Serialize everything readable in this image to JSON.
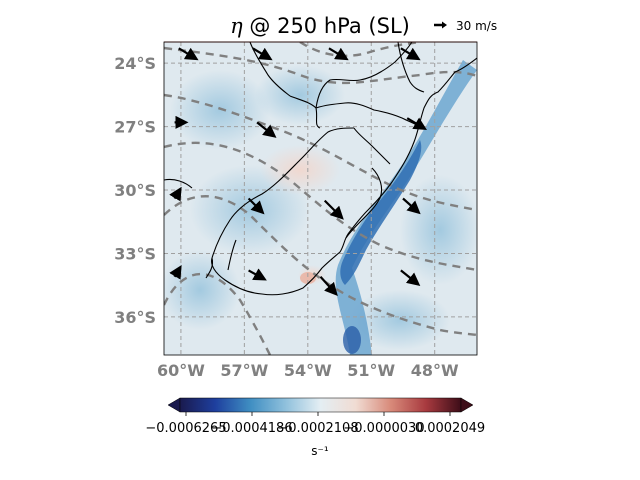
{
  "title": {
    "symbol": "η",
    "text": " @ 250 hPa (SL)"
  },
  "quiver_key": {
    "label": "30 m/s"
  },
  "map": {
    "lat_labels": [
      "24°S",
      "27°S",
      "30°S",
      "33°S",
      "36°S"
    ],
    "lon_labels": [
      "60°W",
      "57°W",
      "54°W",
      "51°W",
      "48°W"
    ],
    "lat_values": [
      -24,
      -27,
      -30,
      -33,
      -36
    ],
    "lon_values": [
      -60,
      -57,
      -54,
      -51,
      -48
    ],
    "extent": {
      "lon": [
        -60.8,
        -46.0
      ],
      "lat": [
        -37.8,
        -23.0
      ]
    },
    "gridlines": true,
    "label_color": "#808080",
    "coastline_color": "#000000",
    "contour_color": "#808080",
    "wind_arrows": [
      {
        "lon": -60.1,
        "lat": -23.3,
        "u": 1.0,
        "v": -0.6
      },
      {
        "lon": -56.6,
        "lat": -23.3,
        "u": 1.0,
        "v": -0.6
      },
      {
        "lon": -53.0,
        "lat": -23.3,
        "u": 1.0,
        "v": -0.6
      },
      {
        "lon": -49.6,
        "lat": -23.3,
        "u": 1.0,
        "v": -0.6
      },
      {
        "lon": -60.3,
        "lat": -26.8,
        "u": 0.6,
        "v": 0.0
      },
      {
        "lon": -56.4,
        "lat": -26.8,
        "u": 1.0,
        "v": -0.8
      },
      {
        "lon": -49.3,
        "lat": -26.6,
        "u": 1.0,
        "v": -0.6
      },
      {
        "lon": -60.3,
        "lat": -30.4,
        "u": 0.3,
        "v": 0.5
      },
      {
        "lon": -56.8,
        "lat": -30.4,
        "u": 0.8,
        "v": -0.8
      },
      {
        "lon": -53.2,
        "lat": -30.5,
        "u": 1.0,
        "v": -1.0
      },
      {
        "lon": -49.5,
        "lat": -30.4,
        "u": 0.9,
        "v": -0.8
      },
      {
        "lon": -60.3,
        "lat": -34.1,
        "u": 0.3,
        "v": 0.5
      },
      {
        "lon": -56.8,
        "lat": -33.8,
        "u": 0.9,
        "v": -0.5
      },
      {
        "lon": -53.4,
        "lat": -34.1,
        "u": 0.9,
        "v": -1.0
      },
      {
        "lon": -49.6,
        "lat": -33.8,
        "u": 1.0,
        "v": -0.8
      }
    ]
  },
  "colorbar": {
    "tick_labels": [
      "−0.0006265",
      "−0.0004186",
      "−0.0002108",
      "−0.0000030",
      "0.0002049"
    ],
    "units": "s⁻¹",
    "colors": [
      "#1a1a4e",
      "#1e3f9e",
      "#3f8ec2",
      "#8fc0dc",
      "#e4eef3",
      "#f0dcd3",
      "#d88a7a",
      "#a83a3f",
      "#3d0d18"
    ]
  }
}
